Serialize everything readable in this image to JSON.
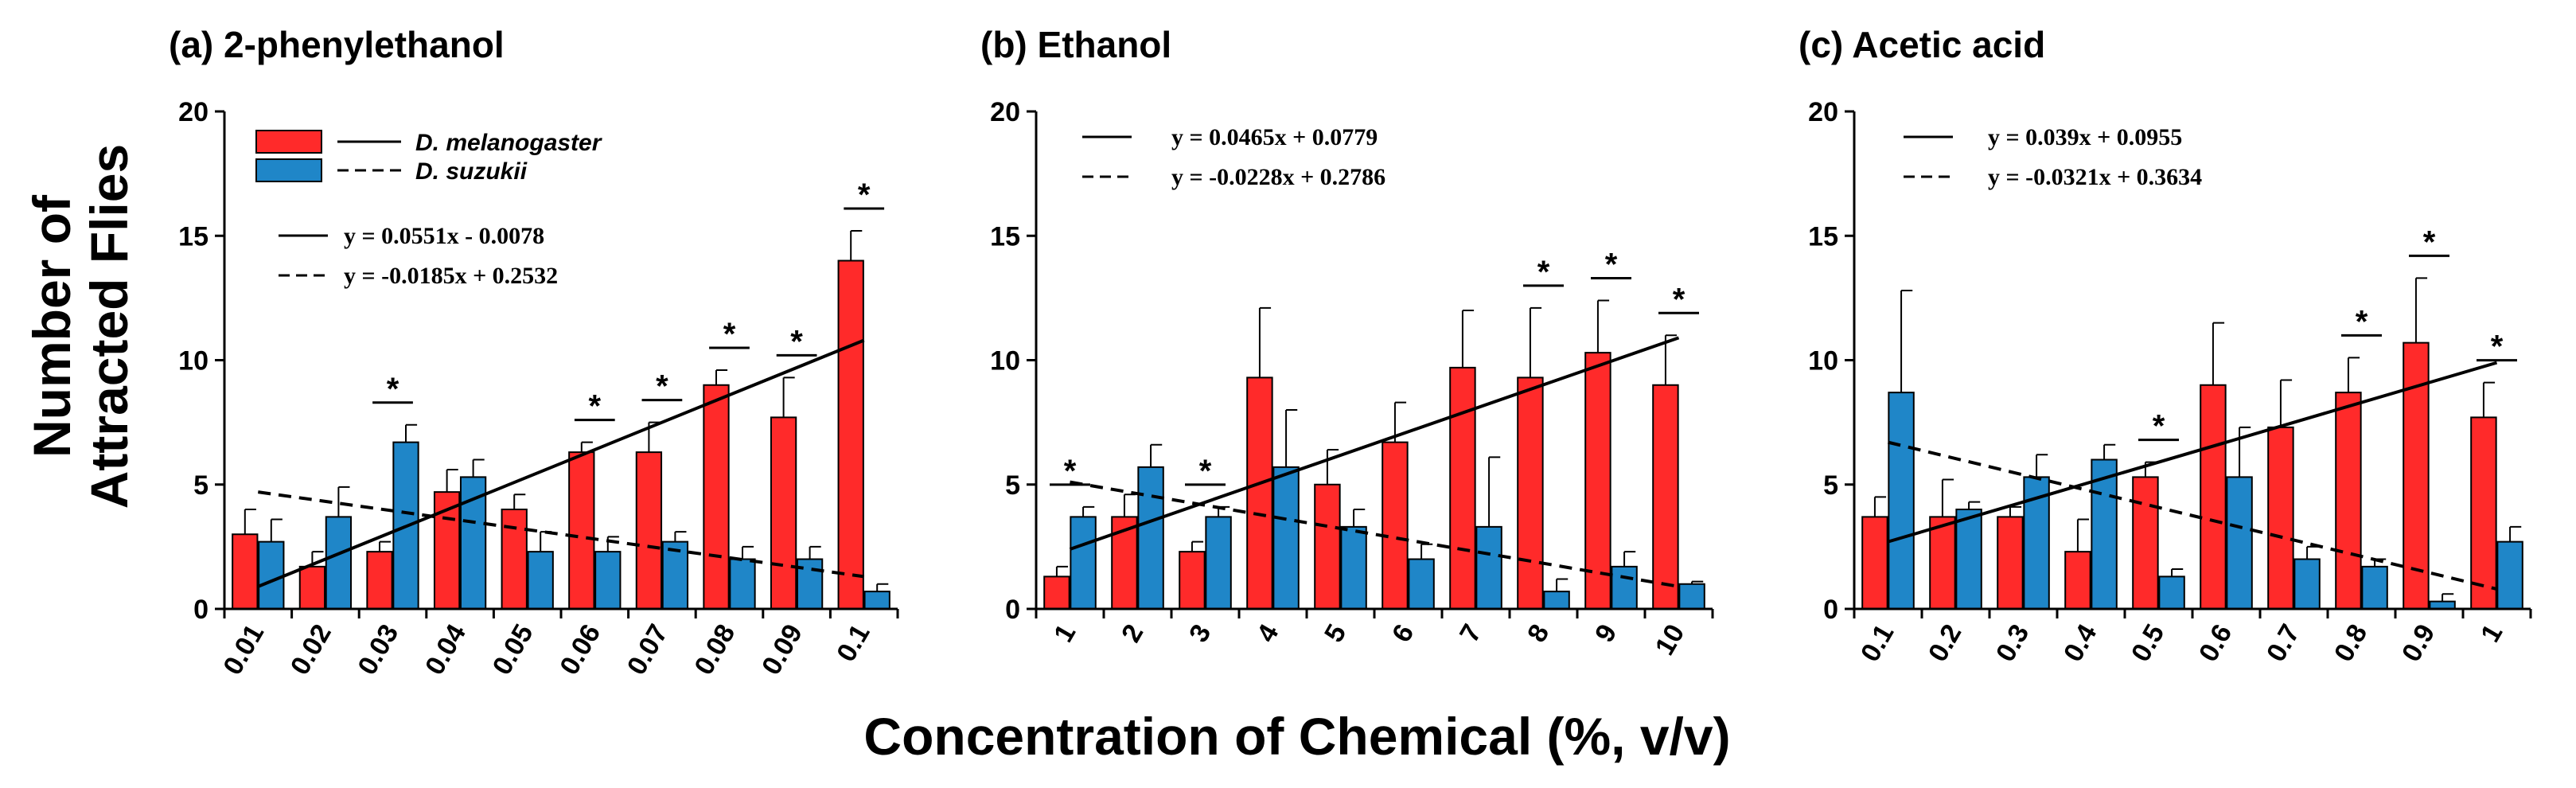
{
  "figure": {
    "ylabel_line1": "Number of",
    "ylabel_line2": "Attracted Flies",
    "xlabel": "Concentration of Chemical (%, v/v)"
  },
  "legend": {
    "series": [
      {
        "name": "D. melanogaster",
        "color": "#ff2a2a",
        "line": "solid"
      },
      {
        "name": "D. suzukii",
        "color": "#1f86c8",
        "line": "dashed"
      }
    ]
  },
  "chart_data": [
    {
      "type": "bar",
      "title": "(a)  2-phenylethanol",
      "xlabel": "Concentration of Chemical (%, v/v)",
      "ylabel": "Number of Attracted Flies",
      "ylim": [
        0,
        20
      ],
      "yticks": [
        0,
        5,
        10,
        15,
        20
      ],
      "categories": [
        "0.01",
        "0.02",
        "0.03",
        "0.04",
        "0.05",
        "0.06",
        "0.07",
        "0.08",
        "0.09",
        "0.1"
      ],
      "series": [
        {
          "name": "D. melanogaster",
          "color": "#ff2a2a",
          "values": [
            3.0,
            1.7,
            2.3,
            4.7,
            4.0,
            6.3,
            6.3,
            9.0,
            7.7,
            14.0
          ],
          "errors": [
            1.0,
            0.6,
            0.4,
            0.9,
            0.6,
            0.4,
            1.2,
            0.6,
            1.6,
            1.2
          ]
        },
        {
          "name": "D. suzukii",
          "color": "#1f86c8",
          "values": [
            2.7,
            3.7,
            6.7,
            5.3,
            2.3,
            2.3,
            2.7,
            2.0,
            2.0,
            0.7
          ],
          "errors": [
            0.9,
            1.2,
            0.7,
            0.7,
            0.8,
            0.6,
            0.4,
            0.5,
            0.5,
            0.3
          ]
        }
      ],
      "trendlines": [
        {
          "series": "D. melanogaster",
          "style": "solid",
          "slope": 0.0551,
          "intercept": -0.0078,
          "equation": "y = 0.0551x  - 0.0078",
          "start": 0.9,
          "end": 10.8
        },
        {
          "series": "D. suzukii",
          "style": "dashed",
          "slope": -0.0185,
          "intercept": 0.2532,
          "equation": "y = -0.0185x  + 0.2532",
          "start": 4.7,
          "end": 1.3
        }
      ],
      "significant": [
        3,
        6,
        7,
        8,
        9,
        10
      ],
      "significance_label": "*"
    },
    {
      "type": "bar",
      "title": "(b)  Ethanol",
      "xlabel": "Concentration of Chemical (%, v/v)",
      "ylabel": "Number of Attracted Flies",
      "ylim": [
        0,
        20
      ],
      "yticks": [
        0,
        5,
        10,
        15,
        20
      ],
      "categories": [
        "1",
        "2",
        "3",
        "4",
        "5",
        "6",
        "7",
        "8",
        "9",
        "10"
      ],
      "series": [
        {
          "name": "D. melanogaster",
          "color": "#ff2a2a",
          "values": [
            1.3,
            3.7,
            2.3,
            9.3,
            5.0,
            6.7,
            9.7,
            9.3,
            10.3,
            9.0
          ],
          "errors": [
            0.4,
            0.9,
            0.4,
            2.8,
            1.4,
            1.6,
            2.3,
            2.8,
            2.1,
            2.0
          ]
        },
        {
          "name": "D. suzukii",
          "color": "#1f86c8",
          "values": [
            3.7,
            5.7,
            3.7,
            5.7,
            3.3,
            2.0,
            3.3,
            0.7,
            1.7,
            1.0
          ],
          "errors": [
            0.4,
            0.9,
            0.4,
            2.3,
            0.7,
            0.6,
            2.8,
            0.5,
            0.6,
            0.1
          ]
        }
      ],
      "trendlines": [
        {
          "series": "D. melanogaster",
          "style": "solid",
          "slope": 0.0465,
          "intercept": 0.0779,
          "equation": "y = 0.0465x  + 0.0779",
          "start": 2.4,
          "end": 10.9
        },
        {
          "series": "D. suzukii",
          "style": "dashed",
          "slope": -0.0228,
          "intercept": 0.2786,
          "equation": "y = -0.0228x  + 0.2786",
          "start": 5.1,
          "end": 0.9
        }
      ],
      "significant": [
        1,
        3,
        8,
        9,
        10
      ],
      "significance_label": "*"
    },
    {
      "type": "bar",
      "title": "(c)  Acetic acid",
      "xlabel": "Concentration of Chemical (%, v/v)",
      "ylabel": "Number of Attracted Flies",
      "ylim": [
        0,
        20
      ],
      "yticks": [
        0,
        5,
        10,
        15,
        20
      ],
      "categories": [
        "0.1",
        "0.2",
        "0.3",
        "0.4",
        "0.5",
        "0.6",
        "0.7",
        "0.8",
        "0.9",
        "1"
      ],
      "series": [
        {
          "name": "D. melanogaster",
          "color": "#ff2a2a",
          "values": [
            3.7,
            3.7,
            3.7,
            2.3,
            5.3,
            9.0,
            7.3,
            8.7,
            10.7,
            7.7
          ],
          "errors": [
            0.8,
            1.5,
            0.4,
            1.3,
            0.6,
            2.5,
            1.9,
            1.4,
            2.6,
            1.4
          ]
        },
        {
          "name": "D. suzukii",
          "color": "#1f86c8",
          "values": [
            8.7,
            4.0,
            5.3,
            6.0,
            1.3,
            5.3,
            2.0,
            1.7,
            0.3,
            2.7
          ],
          "errors": [
            4.1,
            0.3,
            0.9,
            0.6,
            0.3,
            2.0,
            0.5,
            0.3,
            0.3,
            0.6
          ]
        }
      ],
      "trendlines": [
        {
          "series": "D. melanogaster",
          "style": "solid",
          "slope": 0.039,
          "intercept": 0.0955,
          "equation": "y = 0.039x  + 0.0955",
          "start": 2.7,
          "end": 9.9
        },
        {
          "series": "D. suzukii",
          "style": "dashed",
          "slope": -0.0321,
          "intercept": 0.3634,
          "equation": "y = -0.0321x  + 0.3634",
          "start": 6.7,
          "end": 0.8
        }
      ],
      "significant": [
        5,
        8,
        9,
        10
      ],
      "significance_label": "*"
    }
  ]
}
